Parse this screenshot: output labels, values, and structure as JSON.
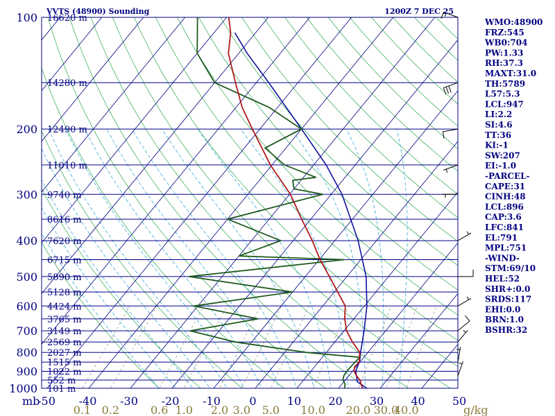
{
  "header": {
    "station_title": "VVTS (48900) Sounding",
    "valid_time": "1200Z  7 DEC 25"
  },
  "chart_data": {
    "type": "skew-t log-p sounding",
    "pressure_levels_hpa": [
      "100",
      "200",
      "300",
      "400",
      "500",
      "600",
      "700",
      "800",
      "900",
      "1000"
    ],
    "height_labels": [
      {
        "p": 100,
        "text": "16620 m"
      },
      {
        "p": 150,
        "text": "14280 m"
      },
      {
        "p": 200,
        "text": "12490 m"
      },
      {
        "p": 250,
        "text": "11010 m"
      },
      {
        "p": 300,
        "text": "9740 m"
      },
      {
        "p": 350,
        "text": "8616 m"
      },
      {
        "p": 400,
        "text": "7620 m"
      },
      {
        "p": 450,
        "text": "6715 m"
      },
      {
        "p": 500,
        "text": "5890 m"
      },
      {
        "p": 550,
        "text": "5128 m"
      },
      {
        "p": 600,
        "text": "4424 m"
      },
      {
        "p": 650,
        "text": "3765 m"
      },
      {
        "p": 700,
        "text": "3149 m"
      },
      {
        "p": 750,
        "text": "2569 m"
      },
      {
        "p": 800,
        "text": "2027 m"
      },
      {
        "p": 850,
        "text": "1515 m"
      },
      {
        "p": 900,
        "text": "1022 m"
      },
      {
        "p": 950,
        "text": "552 m"
      },
      {
        "p": 1000,
        "text": "101 m"
      }
    ],
    "pressure_unit_label": "mb",
    "temperature_ticks_c": [
      "-50",
      "-40",
      "-30",
      "-20",
      "-10",
      "0",
      "10",
      "20",
      "30",
      "40",
      "50"
    ],
    "mixing_ratio_labels": [
      "0.1",
      "0.2",
      "0.6",
      "1.0",
      "2.0",
      "3.0",
      "5.0",
      "10.0",
      "20.0",
      "30.0",
      "40.0"
    ],
    "mixing_ratio_unit": "g/kg",
    "temperature_c": [
      [
        1013,
        26.8
      ],
      [
        1000,
        25.8
      ],
      [
        975,
        24.6
      ],
      [
        950,
        23.5
      ],
      [
        925,
        21.8
      ],
      [
        900,
        20.4
      ],
      [
        875,
        19.6
      ],
      [
        850,
        19.8
      ],
      [
        800,
        18.0
      ],
      [
        750,
        14.2
      ],
      [
        700,
        10.6
      ],
      [
        650,
        7.8
      ],
      [
        600,
        5.4
      ],
      [
        550,
        0.8
      ],
      [
        500,
        -4.2
      ],
      [
        450,
        -9.8
      ],
      [
        400,
        -15.4
      ],
      [
        350,
        -22.2
      ],
      [
        300,
        -29.8
      ],
      [
        250,
        -40.4
      ],
      [
        200,
        -51.8
      ],
      [
        175,
        -58.5
      ],
      [
        150,
        -65.0
      ],
      [
        125,
        -72.5
      ],
      [
        110,
        -76.0
      ],
      [
        100,
        -79.5
      ]
    ],
    "dewpoint_c": [
      [
        1013,
        21.8
      ],
      [
        1000,
        21.4
      ],
      [
        975,
        20.8
      ],
      [
        950,
        19.4
      ],
      [
        925,
        18.8
      ],
      [
        900,
        18.6
      ],
      [
        850,
        18.8
      ],
      [
        825,
        19.0
      ],
      [
        800,
        5.0
      ],
      [
        750,
        -14.0
      ],
      [
        700,
        -27.0
      ],
      [
        650,
        -13.0
      ],
      [
        600,
        -31.0
      ],
      [
        550,
        -10.0
      ],
      [
        500,
        -38.0
      ],
      [
        450,
        -4.0
      ],
      [
        440,
        -30.0
      ],
      [
        400,
        -23.0
      ],
      [
        350,
        -40.0
      ],
      [
        300,
        -22.0
      ],
      [
        290,
        -30.0
      ],
      [
        275,
        -32.0
      ],
      [
        270,
        -27.0
      ],
      [
        250,
        -37.0
      ],
      [
        225,
        -45.0
      ],
      [
        200,
        -40.0
      ],
      [
        175,
        -52.0
      ],
      [
        150,
        -70.0
      ],
      [
        125,
        -80.0
      ],
      [
        100,
        -87.0
      ]
    ],
    "parcel_c": [
      [
        1013,
        28.4
      ],
      [
        1000,
        26.8
      ],
      [
        960,
        23.2
      ],
      [
        900,
        20.8
      ],
      [
        841,
        19.6
      ],
      [
        800,
        18.2
      ],
      [
        700,
        14.8
      ],
      [
        600,
        10.6
      ],
      [
        500,
        4.6
      ],
      [
        400,
        -4.4
      ],
      [
        300,
        -17.4
      ],
      [
        250,
        -27.0
      ],
      [
        200,
        -40.0
      ],
      [
        150,
        -57.0
      ],
      [
        125,
        -68.0
      ],
      [
        110,
        -75.0
      ]
    ],
    "wind_barbs": [
      {
        "p": 100,
        "dir_deg": 290,
        "speed_kt": 15
      },
      {
        "p": 150,
        "dir_deg": 250,
        "speed_kt": 30
      },
      {
        "p": 200,
        "dir_deg": 260,
        "speed_kt": 10
      },
      {
        "p": 250,
        "dir_deg": 250,
        "speed_kt": 5
      },
      {
        "p": 300,
        "dir_deg": 270,
        "speed_kt": 5
      },
      {
        "p": 400,
        "dir_deg": 60,
        "speed_kt": 5
      },
      {
        "p": 500,
        "dir_deg": 90,
        "speed_kt": 10
      },
      {
        "p": 600,
        "dir_deg": 60,
        "speed_kt": 5
      },
      {
        "p": 700,
        "dir_deg": 50,
        "speed_kt": 10
      },
      {
        "p": 750,
        "dir_deg": 40,
        "speed_kt": 5
      },
      {
        "p": 850,
        "dir_deg": 10,
        "speed_kt": 5
      },
      {
        "p": 925,
        "dir_deg": 20,
        "speed_kt": 5
      }
    ]
  },
  "indices": [
    "WMO:48900",
    "FRZ:545",
    "WB0:704",
    "PW:1.33",
    "RH:37.3",
    "MAXT:31.0",
    "TH:5789",
    "L57:5.3",
    "LCL:947",
    "LI:2.2",
    "SI:4.6",
    "TT:36",
    "KI:-1",
    "SW:207",
    "EI:-1.0",
    "-PARCEL-",
    "CAPE:31",
    "CINH:48",
    "LCL:896",
    "CAP:3.6",
    "LFC:841",
    "EL:791",
    "MPL:751",
    "-WIND-",
    "STM:69/10",
    "HEL:52",
    "SHR+:0.0",
    "SRDS:117",
    "EHI:0.0",
    "BRN:1.0",
    "BSHR:32"
  ],
  "colors": {
    "temperature": "#b01818",
    "dewpoint": "#1f5a1f",
    "parcel": "#1010a0",
    "isobar": "#00008b",
    "dry_adiabat": "#2aa84a",
    "moist_adiabat": "#38a8d8",
    "mixing_ratio": "#8a8a6a"
  }
}
